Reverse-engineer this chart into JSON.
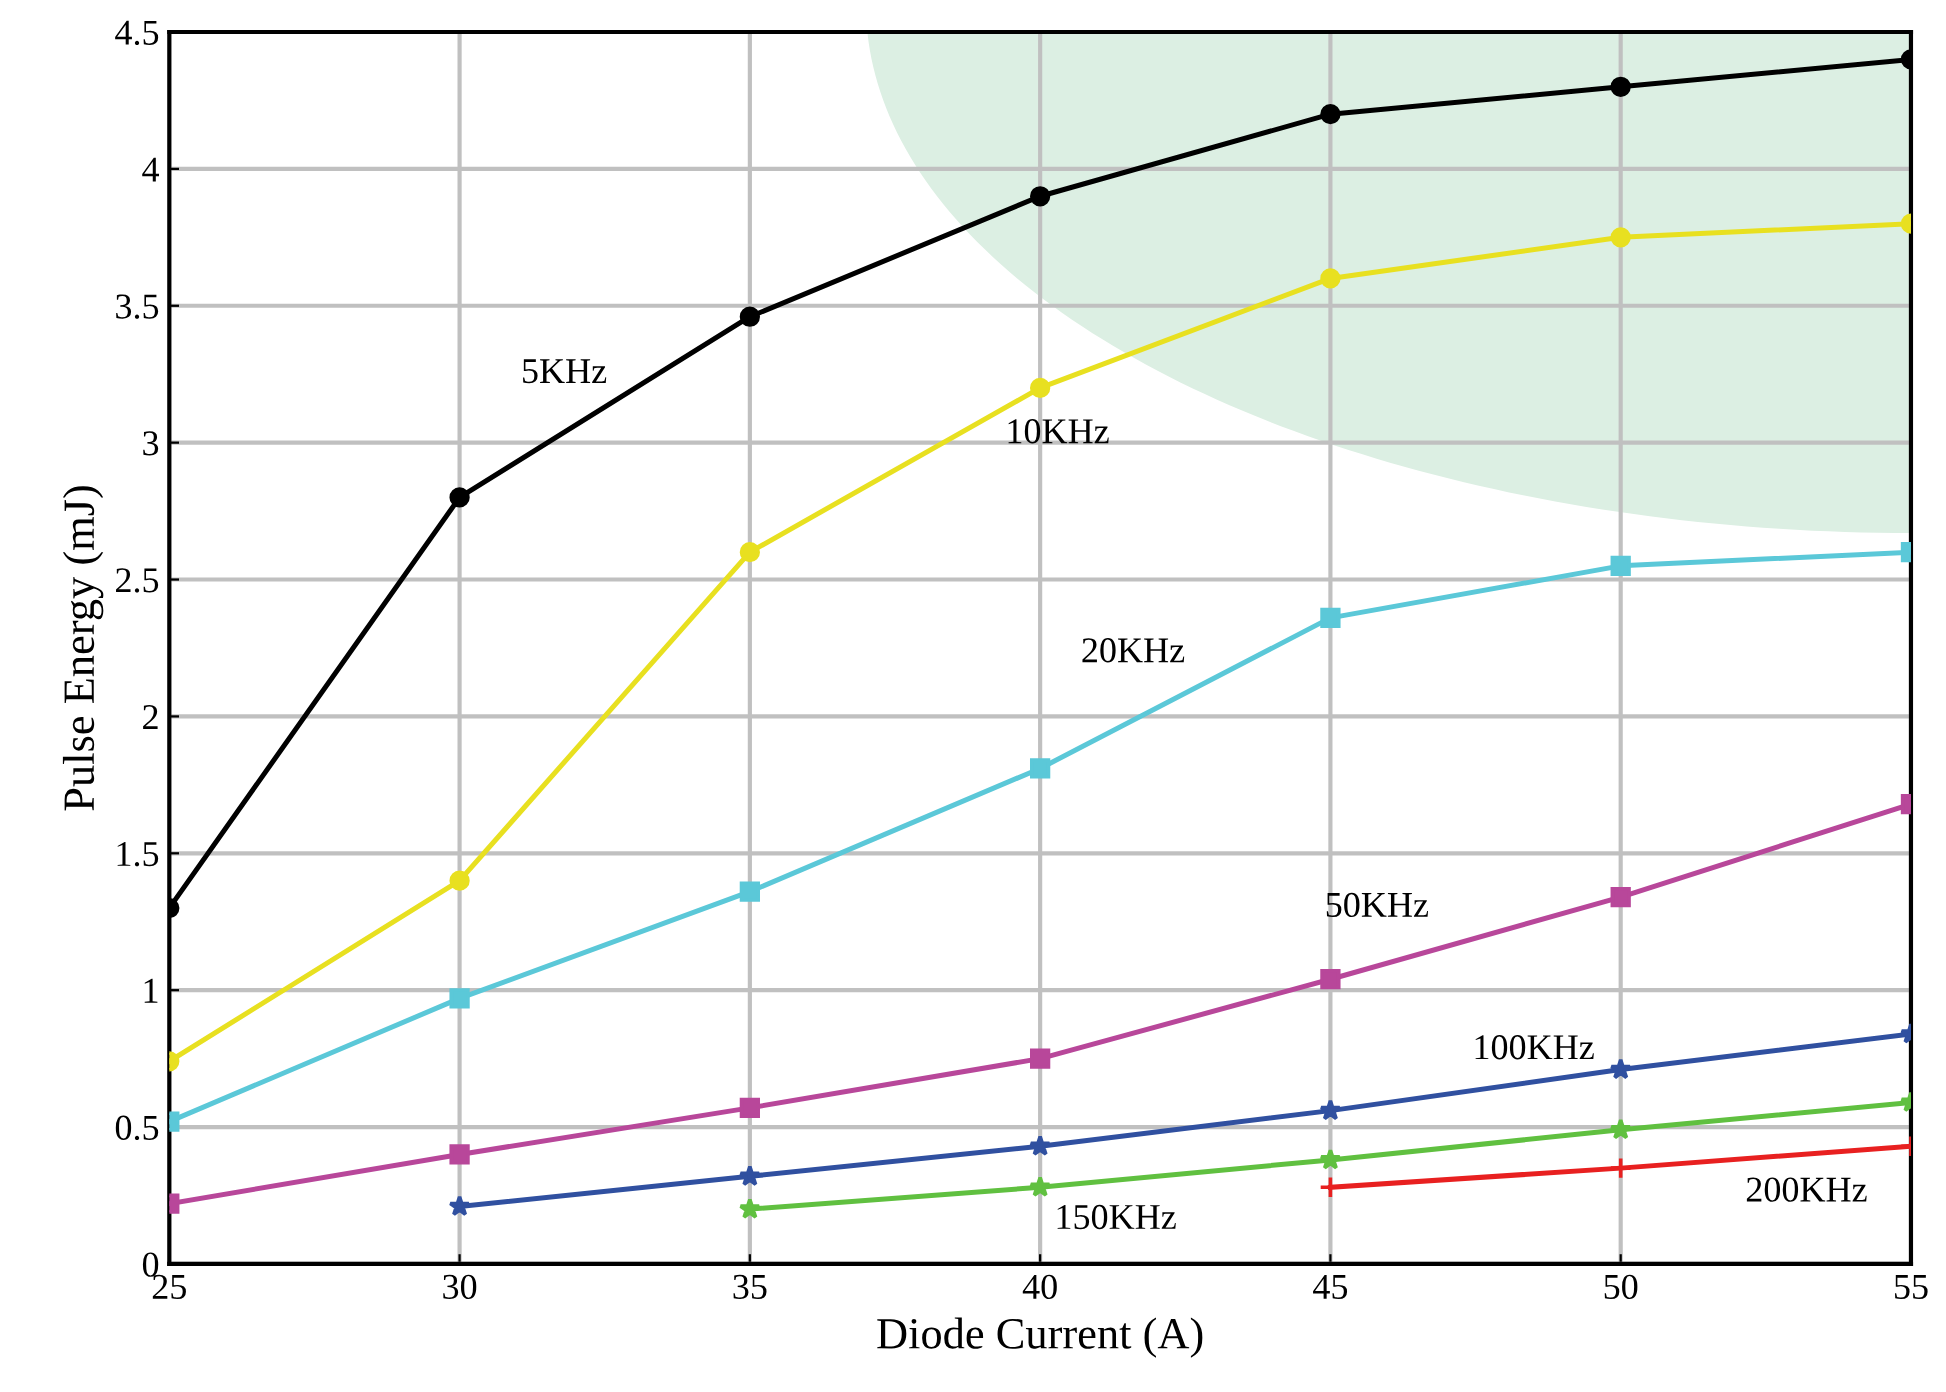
{
  "chart_data": {
    "type": "line",
    "xlabel": "Diode Current (A)",
    "ylabel": "Pulse Energy (mJ)",
    "x": [
      25,
      30,
      35,
      40,
      45,
      50,
      55
    ],
    "series": [
      {
        "name": "5KHz",
        "color": "#000000",
        "marker": "circle",
        "values": [
          1.3,
          2.8,
          3.46,
          3.9,
          4.2,
          4.3,
          4.4
        ]
      },
      {
        "name": "10KHz",
        "color": "#e8e020",
        "marker": "circle",
        "values": [
          0.74,
          1.4,
          2.6,
          3.2,
          3.6,
          3.75,
          3.8
        ]
      },
      {
        "name": "20KHz",
        "color": "#5bc8d8",
        "marker": "square",
        "values": [
          0.52,
          0.97,
          1.36,
          1.81,
          2.36,
          2.55,
          2.6
        ]
      },
      {
        "name": "50KHz",
        "color": "#b8479a",
        "marker": "square",
        "values": [
          0.22,
          0.4,
          0.57,
          0.75,
          1.04,
          1.34,
          1.68
        ]
      },
      {
        "name": "100KHz",
        "color": "#3050a0",
        "marker": "star",
        "values": [
          null,
          0.21,
          0.32,
          0.43,
          0.56,
          0.71,
          0.84
        ]
      },
      {
        "name": "150KHz",
        "color": "#60c040",
        "marker": "star",
        "values": [
          null,
          null,
          0.2,
          0.28,
          0.38,
          0.49,
          0.59
        ]
      },
      {
        "name": "200KHz",
        "color": "#e82020",
        "marker": "cross",
        "values": [
          null,
          null,
          null,
          null,
          0.28,
          0.35,
          0.43
        ]
      }
    ],
    "xlim": [
      25,
      55
    ],
    "xticks": [
      25,
      30,
      35,
      40,
      45,
      50,
      55
    ],
    "ylim": [
      0,
      4.5
    ],
    "yticks": [
      0,
      0.5,
      1,
      1.5,
      2,
      2.5,
      3,
      3.5,
      4,
      4.5
    ],
    "grid": true,
    "line_style": "solid"
  }
}
